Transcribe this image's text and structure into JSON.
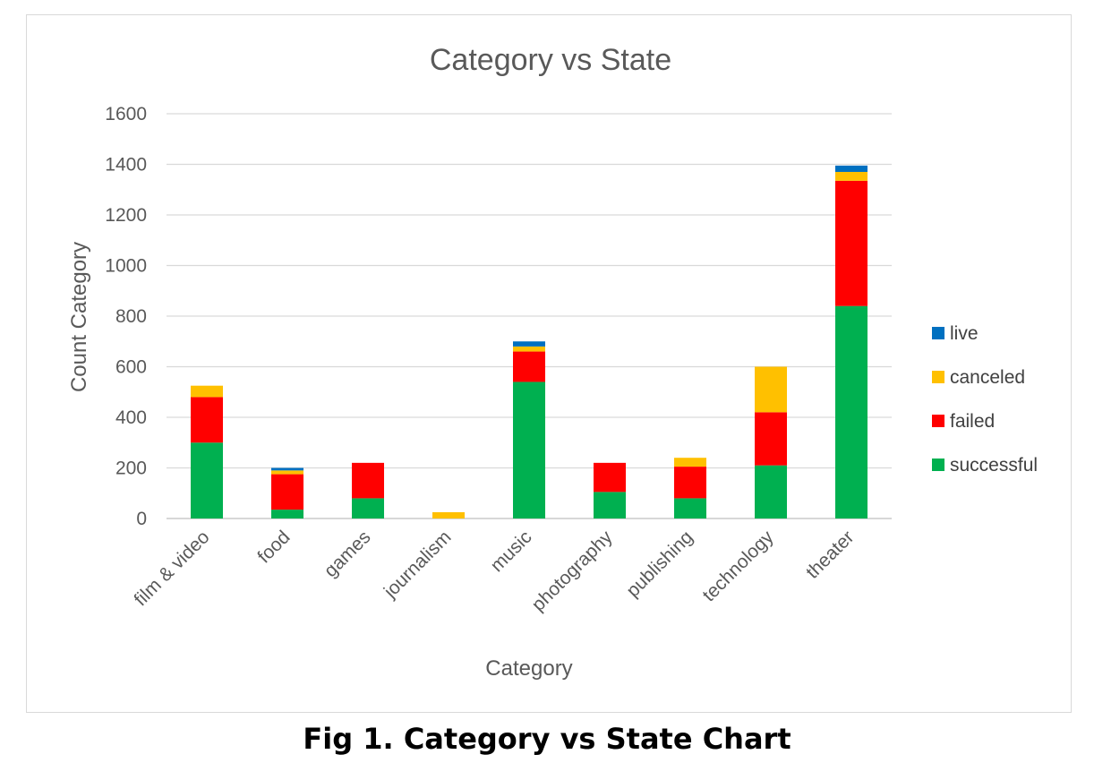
{
  "caption": "Fig 1. Category vs State Chart",
  "chart_data": {
    "type": "bar",
    "stacked": true,
    "title": "Category vs State",
    "xlabel": "Category",
    "ylabel": "Count Category",
    "ylim": [
      0,
      1600
    ],
    "yticks": [
      "0",
      "200",
      "400",
      "600",
      "800",
      "1000",
      "1200",
      "1400",
      "1600"
    ],
    "grid": true,
    "legend_position": "right",
    "categories": [
      "film & video",
      "food",
      "games",
      "journalism",
      "music",
      "photography",
      "publishing",
      "technology",
      "theater"
    ],
    "series": [
      {
        "name": "successful",
        "color": "#00b050",
        "values": [
          300,
          35,
          80,
          0,
          540,
          105,
          80,
          210,
          840
        ]
      },
      {
        "name": "failed",
        "color": "#ff0000",
        "values": [
          180,
          140,
          140,
          0,
          120,
          115,
          125,
          210,
          495
        ]
      },
      {
        "name": "canceled",
        "color": "#ffc000",
        "values": [
          45,
          15,
          0,
          25,
          20,
          0,
          35,
          180,
          35
        ]
      },
      {
        "name": "live",
        "color": "#0070c0",
        "values": [
          0,
          10,
          0,
          0,
          20,
          0,
          0,
          0,
          25
        ]
      }
    ]
  }
}
